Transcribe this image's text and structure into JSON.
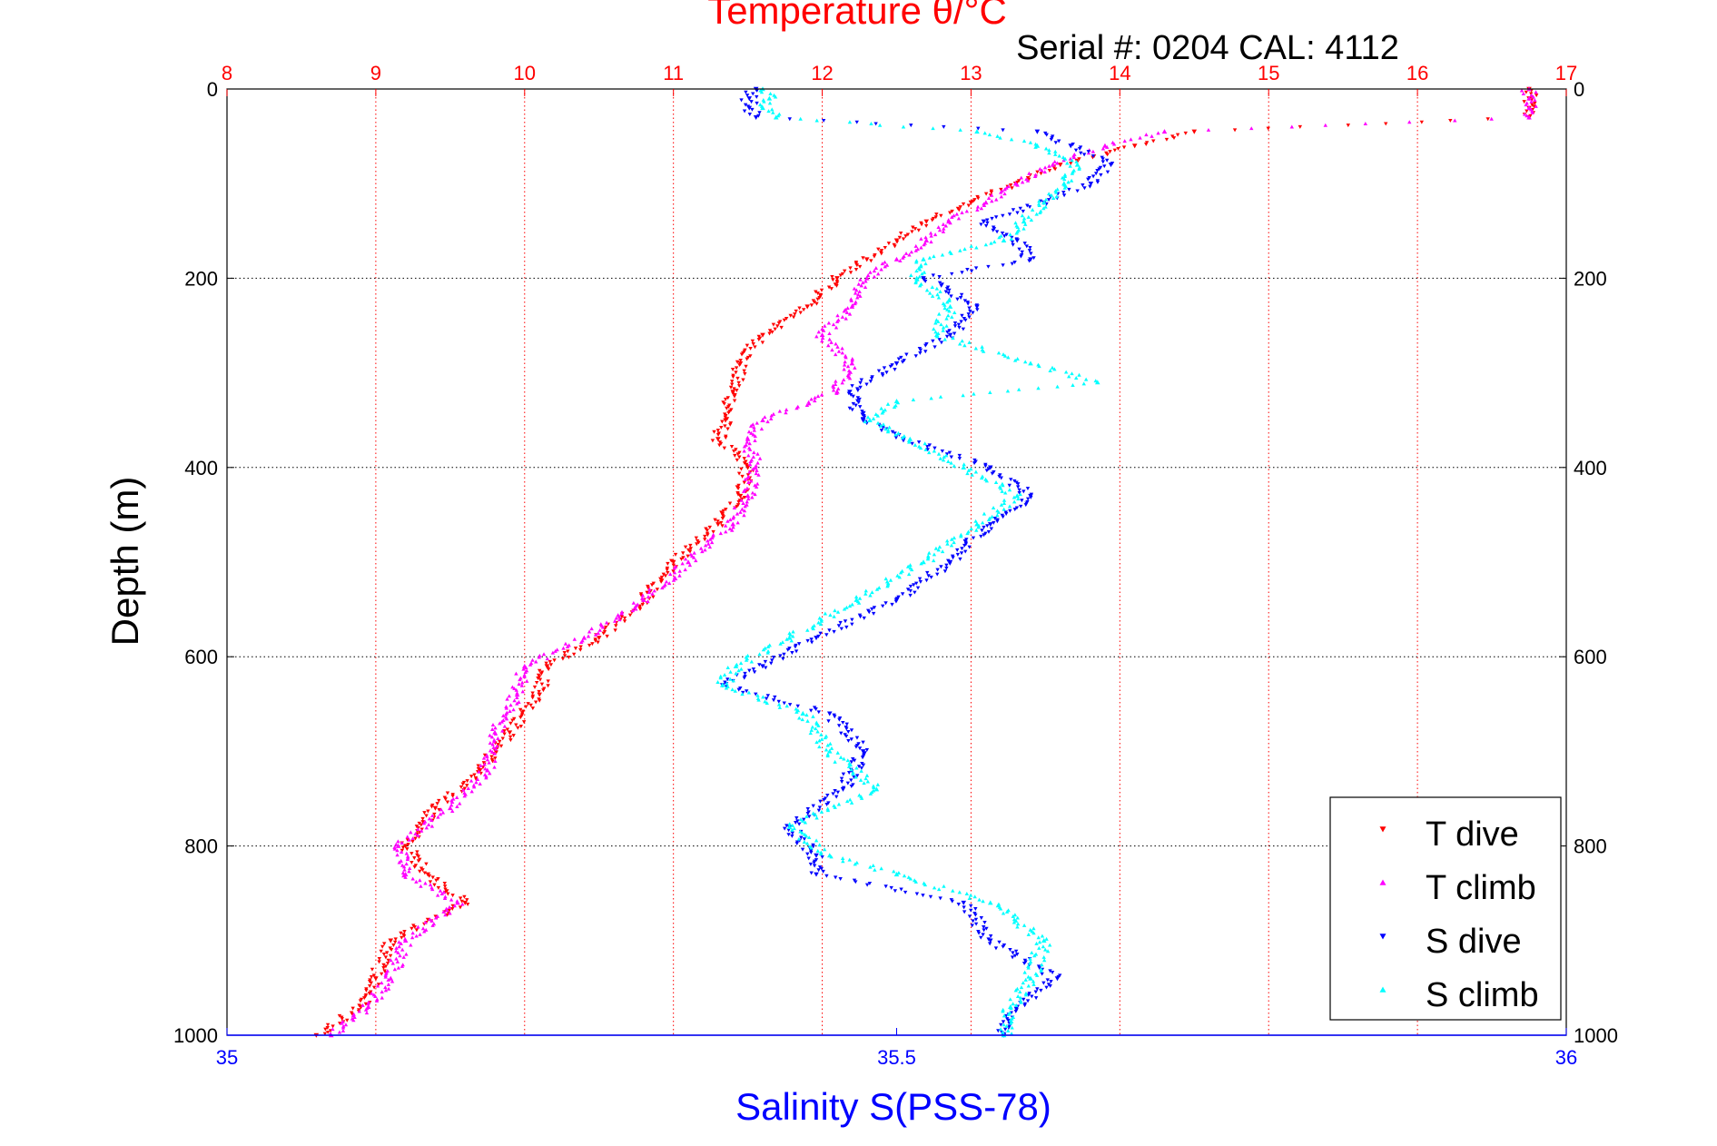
{
  "chart_data": {
    "type": "scatter",
    "title": "Temperature θ/°C",
    "subtitle": "Serial #: 0204  CAL: 4112",
    "ylabel": "Depth (m)",
    "x2label": "Salinity S(PSS-78)",
    "temp_axis": {
      "range": [
        8,
        17
      ],
      "ticks": [
        "8",
        "9",
        "10",
        "11",
        "12",
        "13",
        "14",
        "15",
        "16",
        "17"
      ],
      "color": "#ff0000"
    },
    "sal_axis": {
      "range": [
        35,
        36
      ],
      "ticks": [
        "35",
        "35.5",
        "36"
      ],
      "color": "#0000ff"
    },
    "depth_axis": {
      "range": [
        0,
        1000
      ],
      "ticks": [
        "0",
        "200",
        "400",
        "600",
        "800",
        "1000"
      ],
      "reversed": true
    },
    "grid": true,
    "legend": {
      "position": "bottom-right"
    },
    "series": [
      {
        "name": "T dive",
        "axis": "temp",
        "color": "#ff0000",
        "marker": "triangle-down",
        "depth": [
          0,
          10,
          20,
          30,
          45,
          60,
          80,
          100,
          120,
          140,
          160,
          180,
          200,
          230,
          260,
          290,
          320,
          350,
          370,
          400,
          430,
          460,
          500,
          540,
          580,
          610,
          640,
          680,
          720,
          760,
          800,
          830,
          860,
          900,
          940,
          970,
          1000
        ],
        "values": [
          16.75,
          16.75,
          16.75,
          16.75,
          14.5,
          14.1,
          13.6,
          13.3,
          13.0,
          12.7,
          12.5,
          12.3,
          12.1,
          11.9,
          11.6,
          11.45,
          11.4,
          11.35,
          11.3,
          11.5,
          11.45,
          11.3,
          11.0,
          10.8,
          10.5,
          10.15,
          10.1,
          9.9,
          9.7,
          9.4,
          9.2,
          9.35,
          9.6,
          9.1,
          9.0,
          8.9,
          8.6
        ]
      },
      {
        "name": "T climb",
        "axis": "temp",
        "color": "#ff00ff",
        "marker": "triangle-up",
        "depth": [
          0,
          10,
          20,
          30,
          45,
          60,
          80,
          100,
          120,
          140,
          160,
          180,
          200,
          230,
          260,
          290,
          320,
          350,
          370,
          400,
          430,
          460,
          500,
          540,
          580,
          610,
          640,
          680,
          720,
          760,
          800,
          830,
          860,
          900,
          940,
          970,
          1000
        ],
        "values": [
          16.75,
          16.75,
          16.75,
          16.75,
          14.3,
          13.9,
          13.55,
          13.3,
          13.1,
          12.85,
          12.7,
          12.5,
          12.3,
          12.2,
          12.0,
          12.2,
          12.1,
          11.6,
          11.5,
          11.55,
          11.5,
          11.4,
          11.1,
          10.8,
          10.4,
          10.0,
          9.95,
          9.8,
          9.75,
          9.5,
          9.15,
          9.2,
          9.55,
          9.2,
          9.1,
          8.95,
          8.7
        ]
      },
      {
        "name": "S dive",
        "axis": "sal",
        "color": "#0000ff",
        "marker": "triangle-down",
        "depth": [
          0,
          10,
          20,
          30,
          45,
          60,
          80,
          100,
          120,
          140,
          160,
          180,
          200,
          230,
          260,
          290,
          320,
          350,
          370,
          400,
          430,
          460,
          500,
          540,
          580,
          610,
          630,
          660,
          700,
          740,
          780,
          810,
          830,
          860,
          900,
          940,
          970,
          1000
        ],
        "values": [
          35.395,
          35.39,
          35.39,
          35.395,
          35.605,
          35.63,
          35.66,
          35.645,
          35.61,
          35.565,
          35.59,
          35.6,
          35.52,
          35.56,
          35.54,
          35.5,
          35.465,
          35.475,
          35.505,
          35.57,
          35.6,
          35.57,
          35.54,
          35.5,
          35.44,
          35.4,
          35.37,
          35.45,
          35.475,
          35.46,
          35.42,
          35.44,
          35.44,
          35.55,
          35.57,
          35.62,
          35.59,
          35.58
        ]
      },
      {
        "name": "S climb",
        "axis": "sal",
        "color": "#00ffff",
        "marker": "triangle-up",
        "depth": [
          0,
          10,
          20,
          30,
          45,
          60,
          80,
          100,
          120,
          140,
          160,
          180,
          200,
          230,
          260,
          290,
          310,
          330,
          350,
          370,
          400,
          430,
          460,
          500,
          540,
          580,
          610,
          630,
          660,
          700,
          740,
          780,
          810,
          830,
          860,
          900,
          940,
          970,
          1000
        ],
        "values": [
          35.4,
          35.405,
          35.4,
          35.41,
          35.56,
          35.605,
          35.635,
          35.625,
          35.61,
          35.595,
          35.58,
          35.52,
          35.515,
          35.54,
          35.53,
          35.6,
          35.65,
          35.5,
          35.48,
          35.51,
          35.55,
          35.59,
          35.56,
          35.52,
          35.47,
          35.42,
          35.38,
          35.37,
          35.43,
          35.45,
          35.485,
          35.42,
          35.45,
          35.5,
          35.57,
          35.61,
          35.6,
          35.585,
          35.58
        ]
      }
    ]
  }
}
